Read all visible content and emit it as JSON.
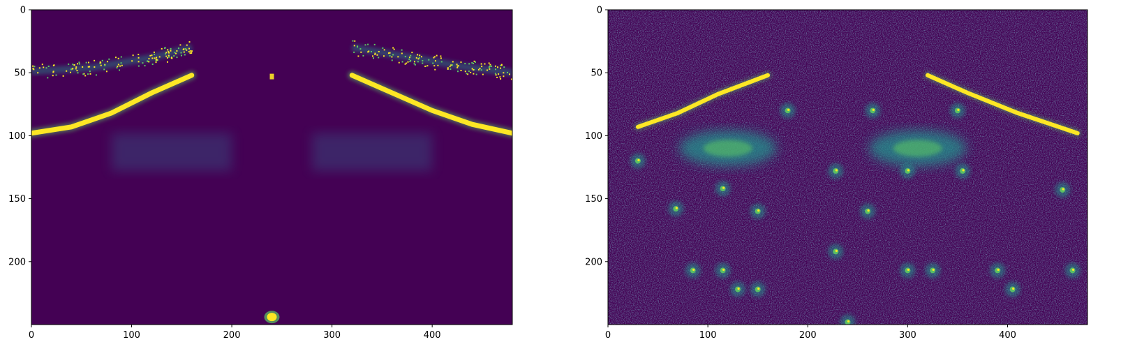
{
  "chart_data": [
    {
      "type": "heatmap",
      "colormap": "viridis",
      "title": "",
      "xlabel": "",
      "ylabel": "",
      "image_size": {
        "width": 480,
        "height": 250
      },
      "xlim": [
        0,
        480
      ],
      "ylim": [
        250,
        0
      ],
      "x_ticks": [
        0,
        100,
        200,
        300,
        400
      ],
      "y_ticks": [
        0,
        50,
        100,
        150,
        200
      ],
      "grid": false,
      "features": {
        "lane_curves": [
          {
            "points": [
              [
                0,
                98
              ],
              [
                40,
                93
              ],
              [
                80,
                82
              ],
              [
                120,
                66
              ],
              [
                160,
                52
              ]
            ]
          },
          {
            "points": [
              [
                320,
                52
              ],
              [
                360,
                66
              ],
              [
                400,
                80
              ],
              [
                440,
                91
              ],
              [
                480,
                98
              ]
            ]
          }
        ],
        "upper_speckle_bands": [
          {
            "points": [
              [
                0,
                49
              ],
              [
                60,
                46
              ],
              [
                120,
                38
              ],
              [
                160,
                30
              ]
            ]
          },
          {
            "points": [
              [
                320,
                30
              ],
              [
                380,
                38
              ],
              [
                430,
                45
              ],
              [
                480,
                50
              ]
            ]
          }
        ],
        "faint_regions": [
          {
            "x": [
              80,
              200
            ],
            "y": [
              98,
              128
            ]
          },
          {
            "x": [
              280,
              400
            ],
            "y": [
              98,
              128
            ]
          }
        ],
        "bright_blob": {
          "x": 240,
          "y": 244
        },
        "center_mark": {
          "x": 240,
          "y": 53
        }
      }
    },
    {
      "type": "heatmap",
      "colormap": "viridis",
      "title": "",
      "xlabel": "",
      "ylabel": "",
      "image_size": {
        "width": 480,
        "height": 250
      },
      "xlim": [
        0,
        480
      ],
      "ylim": [
        250,
        0
      ],
      "x_ticks": [
        0,
        100,
        200,
        300,
        400
      ],
      "y_ticks": [
        0,
        50,
        100,
        150,
        200
      ],
      "grid": false,
      "features": {
        "lane_curves": [
          {
            "points": [
              [
                30,
                93
              ],
              [
                70,
                82
              ],
              [
                110,
                67
              ],
              [
                160,
                52
              ]
            ]
          },
          {
            "points": [
              [
                320,
                52
              ],
              [
                360,
                66
              ],
              [
                410,
                82
              ],
              [
                470,
                98
              ]
            ]
          }
        ],
        "hot_regions": [
          {
            "x": 120,
            "y": 110
          },
          {
            "x": 310,
            "y": 110
          }
        ],
        "spots": [
          [
            115,
            142
          ],
          [
            68,
            158
          ],
          [
            260,
            160
          ],
          [
            228,
            128
          ],
          [
            300,
            128
          ],
          [
            355,
            128
          ],
          [
            228,
            192
          ],
          [
            85,
            207
          ],
          [
            115,
            207
          ],
          [
            300,
            207
          ],
          [
            325,
            207
          ],
          [
            390,
            207
          ],
          [
            130,
            222
          ],
          [
            150,
            222
          ],
          [
            405,
            222
          ],
          [
            465,
            207
          ],
          [
            240,
            248
          ],
          [
            180,
            80
          ],
          [
            265,
            80
          ],
          [
            350,
            80
          ],
          [
            30,
            120
          ],
          [
            150,
            160
          ],
          [
            455,
            143
          ]
        ]
      }
    }
  ],
  "colors": {
    "viridis_dark": "#440154",
    "viridis_blue": "#31688e",
    "viridis_teal": "#21918c",
    "viridis_green": "#5ec962",
    "viridis_yellow": "#fde725"
  },
  "tick_labels": {
    "x": [
      "0",
      "100",
      "200",
      "300",
      "400"
    ],
    "y": [
      "0",
      "50",
      "100",
      "150",
      "200"
    ]
  }
}
